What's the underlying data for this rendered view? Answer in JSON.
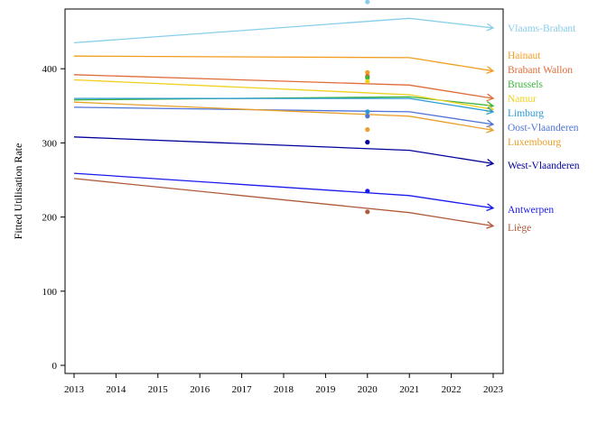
{
  "chart_data": {
    "type": "line",
    "title": "",
    "xlabel": "",
    "ylabel": "Fitted Utilisation Rate",
    "xlim": [
      2013,
      2023
    ],
    "ylim": [
      0,
      480
    ],
    "x_ticks": [
      "2013",
      "2014",
      "2015",
      "2016",
      "2017",
      "2018",
      "2019",
      "2020",
      "2021",
      "2022",
      "2023"
    ],
    "y_ticks": [
      "0",
      "100",
      "200",
      "300",
      "400"
    ],
    "grid": false,
    "legend": "right-end-labels",
    "x": [
      2013,
      2021,
      2023
    ],
    "series": [
      {
        "name": "Vlaams-Brabant",
        "color": "#87ceeb",
        "values": [
          435,
          468,
          455
        ],
        "point_2020": 490
      },
      {
        "name": "Hainaut",
        "color": "#f39c1f",
        "values": [
          417,
          415,
          397
        ],
        "point_2020": 395
      },
      {
        "name": "Brabant Wallon",
        "color": "#e06c38",
        "values": [
          392,
          378,
          360
        ],
        "point_2020": 390
      },
      {
        "name": "Brussels",
        "color": "#3cb43c",
        "values": [
          358,
          362,
          350
        ],
        "point_2020": 388
      },
      {
        "name": "Namur",
        "color": "#f0d020",
        "values": [
          385,
          365,
          345
        ],
        "point_2020": 383
      },
      {
        "name": "Limburg",
        "color": "#2a9ad8",
        "values": [
          360,
          360,
          342
        ],
        "point_2020": 342
      },
      {
        "name": "Oost-Vlaanderen",
        "color": "#4f73d6",
        "values": [
          348,
          342,
          325
        ],
        "point_2020": 336
      },
      {
        "name": "Luxembourg",
        "color": "#e8a02a",
        "values": [
          355,
          336,
          317
        ],
        "point_2020": 318
      },
      {
        "name": "West-Vlaanderen",
        "color": "#000099",
        "values": [
          308,
          290,
          272
        ],
        "point_2020": 301
      },
      {
        "name": "Antwerpen",
        "color": "#1a1aee",
        "values": [
          259,
          229,
          212
        ],
        "point_2020": 235
      },
      {
        "name": "Liège",
        "color": "#b05a3a",
        "values": [
          252,
          206,
          188
        ],
        "point_2020": 207
      }
    ]
  }
}
